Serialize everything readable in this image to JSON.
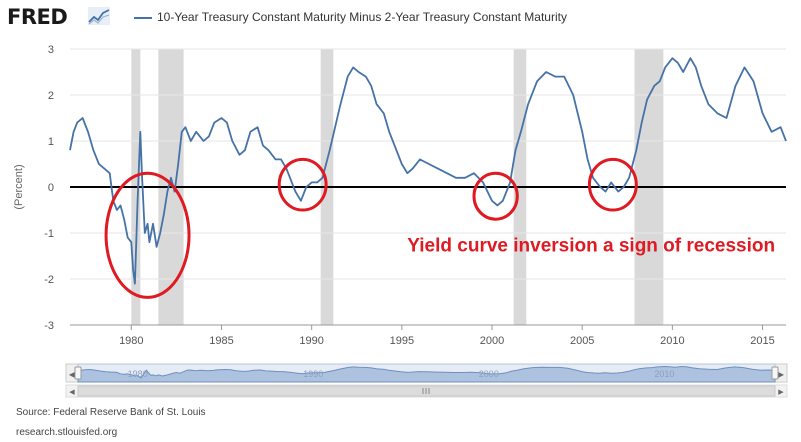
{
  "header": {
    "logo": "FRED",
    "legend_label": "10-Year Treasury Constant Maturity Minus 2-Year Treasury Constant Maturity"
  },
  "footer": {
    "source": "Source: Federal Reserve Bank of St. Louis",
    "url": "research.stlouisfed.org"
  },
  "colors": {
    "series": "#4572a7",
    "recession": "#d9d9d9",
    "annotation": "#e01a22",
    "zero_line": "#000000"
  },
  "chart_data": {
    "type": "line",
    "title": "10-Year Treasury Constant Maturity Minus 2-Year Treasury Constant Maturity",
    "xlabel": "",
    "ylabel": "(Percent)",
    "xlim": [
      1976.6,
      2016.3
    ],
    "ylim": [
      -3,
      3
    ],
    "x_ticks": [
      1980,
      1985,
      1990,
      1995,
      2000,
      2005,
      2010,
      2015
    ],
    "y_ticks": [
      -3,
      -2,
      -1,
      0,
      1,
      2,
      3
    ],
    "grid": true,
    "legend": "top",
    "recessions": [
      [
        1980.0,
        1980.5
      ],
      [
        1981.5,
        1982.9
      ],
      [
        1990.5,
        1991.2
      ],
      [
        2001.2,
        2001.9
      ],
      [
        2007.9,
        2009.5
      ]
    ],
    "series": [
      {
        "name": "10-Year Treasury Constant Maturity Minus 2-Year Treasury Constant Maturity",
        "x": [
          1976.6,
          1976.8,
          1977.0,
          1977.3,
          1977.6,
          1977.9,
          1978.2,
          1978.5,
          1978.8,
          1979.0,
          1979.2,
          1979.4,
          1979.6,
          1979.8,
          1980.0,
          1980.1,
          1980.2,
          1980.35,
          1980.5,
          1980.6,
          1980.75,
          1980.9,
          1981.0,
          1981.2,
          1981.4,
          1981.6,
          1981.8,
          1982.0,
          1982.2,
          1982.4,
          1982.6,
          1982.8,
          1983.0,
          1983.3,
          1983.6,
          1984.0,
          1984.3,
          1984.6,
          1985.0,
          1985.3,
          1985.6,
          1986.0,
          1986.3,
          1986.6,
          1987.0,
          1987.3,
          1987.6,
          1988.0,
          1988.3,
          1988.6,
          1988.9,
          1989.1,
          1989.4,
          1989.7,
          1990.0,
          1990.3,
          1990.6,
          1991.0,
          1991.3,
          1991.6,
          1992.0,
          1992.3,
          1992.6,
          1993.0,
          1993.3,
          1993.6,
          1994.0,
          1994.3,
          1994.6,
          1995.0,
          1995.3,
          1995.6,
          1996.0,
          1996.5,
          1997.0,
          1997.5,
          1998.0,
          1998.5,
          1999.0,
          1999.5,
          2000.0,
          2000.3,
          2000.6,
          2001.0,
          2001.3,
          2001.6,
          2002.0,
          2002.5,
          2003.0,
          2003.5,
          2004.0,
          2004.5,
          2005.0,
          2005.3,
          2005.6,
          2006.0,
          2006.3,
          2006.6,
          2007.0,
          2007.3,
          2007.6,
          2008.0,
          2008.3,
          2008.6,
          2009.0,
          2009.3,
          2009.6,
          2010.0,
          2010.3,
          2010.6,
          2011.0,
          2011.3,
          2011.6,
          2012.0,
          2012.5,
          2013.0,
          2013.5,
          2014.0,
          2014.5,
          2015.0,
          2015.5,
          2016.0,
          2016.3
        ],
        "values": [
          0.8,
          1.2,
          1.4,
          1.5,
          1.2,
          0.8,
          0.5,
          0.4,
          0.3,
          -0.3,
          -0.5,
          -0.4,
          -0.7,
          -1.1,
          -1.2,
          -1.8,
          -2.1,
          -0.3,
          1.2,
          0.2,
          -1.0,
          -0.8,
          -1.2,
          -0.8,
          -1.3,
          -1.0,
          -0.6,
          -0.1,
          0.2,
          -0.1,
          0.5,
          1.2,
          1.3,
          1.0,
          1.2,
          1.0,
          1.1,
          1.4,
          1.5,
          1.4,
          1.0,
          0.7,
          0.8,
          1.2,
          1.3,
          0.9,
          0.8,
          0.6,
          0.6,
          0.4,
          0.1,
          -0.1,
          -0.3,
          0.0,
          0.1,
          0.1,
          0.2,
          0.8,
          1.3,
          1.8,
          2.4,
          2.6,
          2.5,
          2.4,
          2.2,
          1.8,
          1.6,
          1.2,
          0.9,
          0.5,
          0.3,
          0.4,
          0.6,
          0.5,
          0.4,
          0.3,
          0.2,
          0.2,
          0.3,
          0.1,
          -0.3,
          -0.4,
          -0.3,
          0.1,
          0.8,
          1.2,
          1.8,
          2.3,
          2.5,
          2.4,
          2.4,
          2.0,
          1.2,
          0.6,
          0.2,
          0.0,
          -0.1,
          0.1,
          -0.1,
          0.0,
          0.2,
          0.8,
          1.4,
          1.9,
          2.2,
          2.3,
          2.6,
          2.8,
          2.7,
          2.5,
          2.8,
          2.6,
          2.2,
          1.8,
          1.6,
          1.5,
          2.2,
          2.6,
          2.3,
          1.6,
          1.2,
          1.3,
          1.0
        ]
      }
    ],
    "annotations": [
      {
        "type": "text",
        "label": "Yield curve inversion a sign of recession",
        "x": 2005.5,
        "y": -1.4
      },
      {
        "type": "ellipse",
        "cx": 1980.9,
        "cy": -1.05,
        "rx": 2.3,
        "ry": 1.35
      },
      {
        "type": "ellipse",
        "cx": 1989.5,
        "cy": 0.05,
        "rx": 1.3,
        "ry": 0.55
      },
      {
        "type": "ellipse",
        "cx": 2000.2,
        "cy": -0.2,
        "rx": 1.2,
        "ry": 0.5
      },
      {
        "type": "ellipse",
        "cx": 2006.7,
        "cy": 0.05,
        "rx": 1.3,
        "ry": 0.55
      }
    ]
  },
  "navigator": {
    "years": [
      1980,
      1990,
      2000,
      2010
    ]
  }
}
